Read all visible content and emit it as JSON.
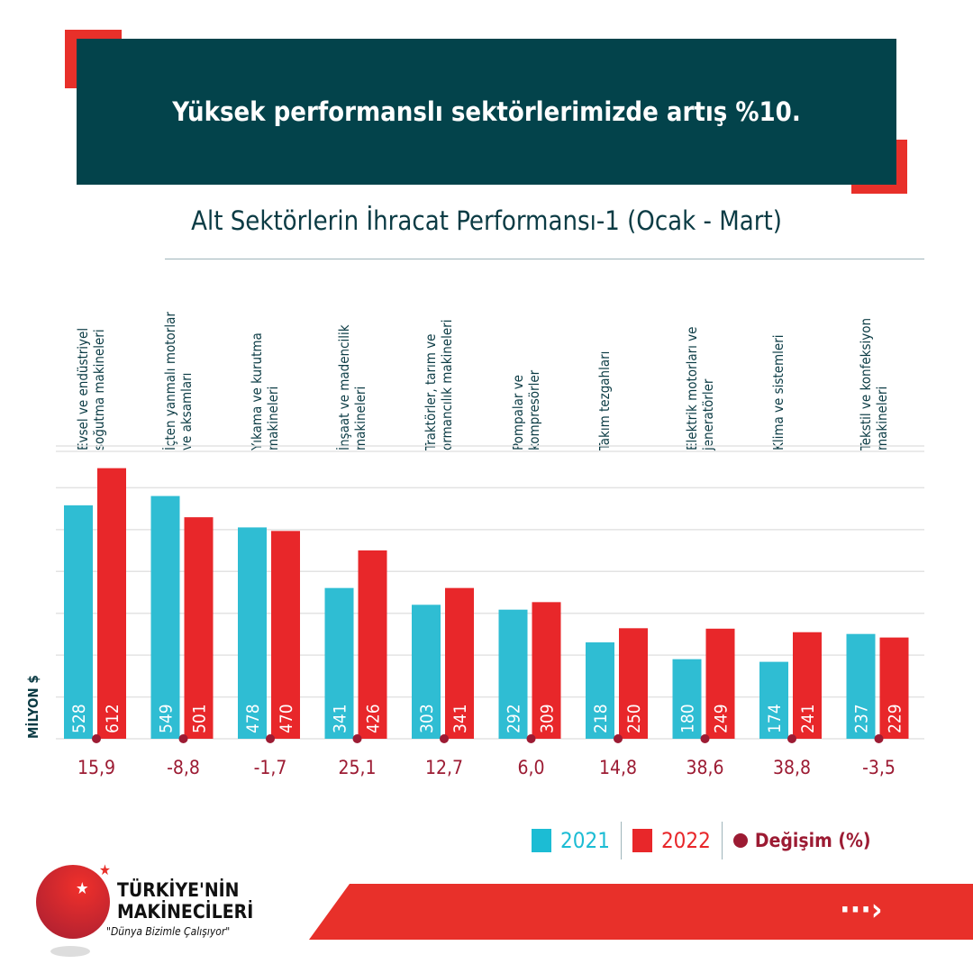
{
  "header": {
    "title": "Yüksek performanslı sektörlerimizde artış %10."
  },
  "chart_data": {
    "type": "bar",
    "title": "Alt Sektörlerin İhracat Performansı-1 (Ocak - Mart)",
    "ylabel": "MİLYON $",
    "ylim": [
      0,
      650
    ],
    "grid": true,
    "legend_position": "bottom-right",
    "categories": [
      "Evsel ve endüstriyel\nsoğutma makineleri",
      "İçten yanmalı motorlar\nve aksamları",
      "Yıkama ve kurutma\nmakineleri",
      "İnşaat ve madencilik\nmakineleri",
      "Traktörler, tarım ve\normancılık makineleri",
      "Pompalar ve\nkompresörler",
      "Takım tezgahları",
      "Elektrik motorları ve\njeneratörler",
      "Klima ve sistemleri",
      "Tekstil ve konfeksiyon\nmakineleri"
    ],
    "series": [
      {
        "name": "2021",
        "color": "#2fbdd3",
        "values": [
          528,
          549,
          478,
          341,
          303,
          292,
          218,
          180,
          174,
          237
        ]
      },
      {
        "name": "2022",
        "color": "#e8272a",
        "values": [
          612,
          501,
          470,
          426,
          341,
          309,
          250,
          249,
          241,
          229
        ]
      }
    ],
    "change": {
      "name": "Değişim (%)",
      "color": "#9c1b33",
      "values": [
        "15,9",
        "-8,8",
        "-1,7",
        "25,1",
        "12,7",
        "6,0",
        "14,8",
        "38,6",
        "38,8",
        "-3,5"
      ]
    }
  },
  "legend": {
    "s2021": "2021",
    "s2022": "2022",
    "change": "Değişim (%)"
  },
  "footer": {
    "brand_line1": "TÜRKİYE'NİN",
    "brand_line2": "MAKİNECİLERİ",
    "slogan": "\"Dünya Bizimle Çalışıyor\"",
    "next": "···›"
  }
}
